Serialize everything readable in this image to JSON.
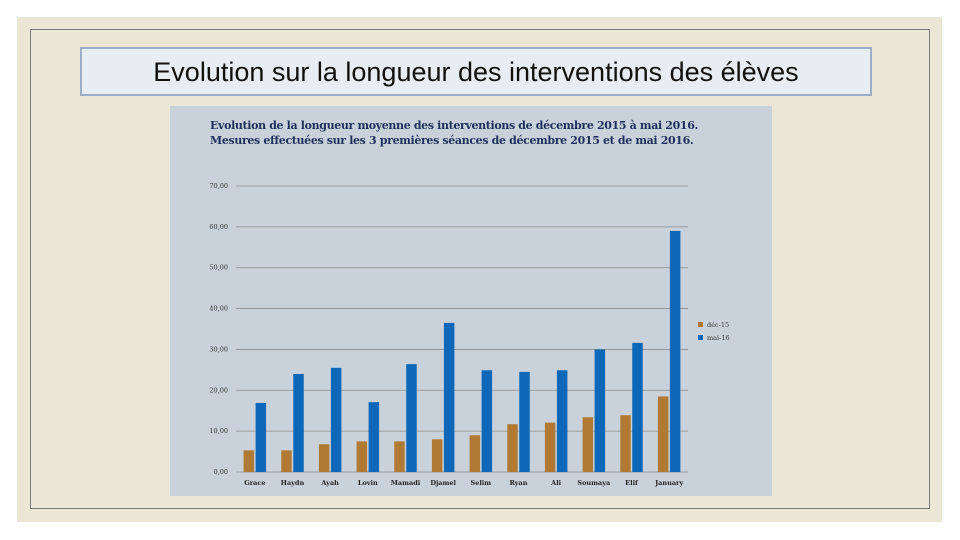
{
  "slide": {
    "title": "Evolution sur la longueur des interventions des élèves"
  },
  "colors": {
    "dec15": "#b07a35",
    "mai16": "#0e67b8",
    "grid": "#8c8c8c"
  },
  "chart_data": {
    "type": "bar",
    "title": "Evolution de la longueur moyenne des interventions de décembre 2015 à mai 2016.",
    "subtitle": "Mesures effectuées sur les 3 premières séances de décembre 2015 et de mai 2016.",
    "categories": [
      "Grace",
      "Haydn",
      "Ayah",
      "Lovin",
      "Mamadi",
      "Djamel",
      "Selim",
      "Ryan",
      "Ali",
      "Soumaya",
      "Elif",
      "January"
    ],
    "series": [
      {
        "name": "déc-15",
        "values": [
          5.3,
          5.3,
          6.8,
          7.5,
          7.5,
          8.0,
          9.0,
          11.7,
          12.1,
          13.4,
          13.9,
          18.5
        ]
      },
      {
        "name": "mai-16",
        "values": [
          16.9,
          24.0,
          25.5,
          17.1,
          26.4,
          36.5,
          24.9,
          24.5,
          24.9,
          30.0,
          31.6,
          59.0
        ]
      }
    ],
    "yticks": [
      "0,00",
      "10,00",
      "20,00",
      "30,00",
      "40,00",
      "50,00",
      "60,00",
      "70,00"
    ],
    "ylim": [
      0,
      70
    ],
    "grid": true,
    "legend": "right"
  }
}
